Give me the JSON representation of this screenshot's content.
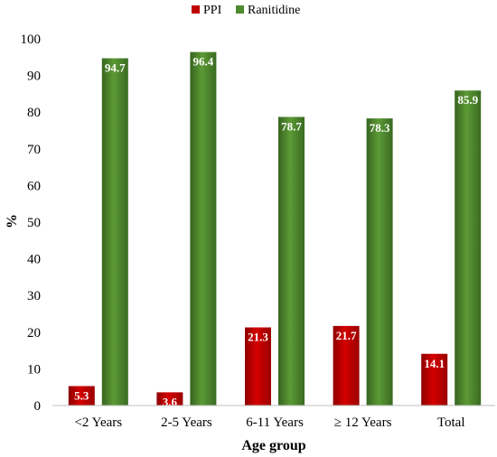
{
  "chart_data": {
    "type": "bar",
    "categories": [
      "<2 Years",
      "2-5 Years",
      "6-11 Years",
      "≥ 12 Years",
      "Total"
    ],
    "series": [
      {
        "name": "PPI",
        "values": [
          5.3,
          3.6,
          21.3,
          21.7,
          14.1
        ],
        "color": "#c00000"
      },
      {
        "name": "Ranitidine",
        "values": [
          94.7,
          96.4,
          78.7,
          78.3,
          85.9
        ],
        "color": "#4e8a2e"
      }
    ],
    "xlabel": "Age group",
    "ylabel": "%",
    "ylim": [
      0,
      100
    ],
    "yticks": [
      0,
      10,
      20,
      30,
      40,
      50,
      60,
      70,
      80,
      90,
      100
    ],
    "grid": false,
    "legend_position": "top-center",
    "data_labels": true
  }
}
